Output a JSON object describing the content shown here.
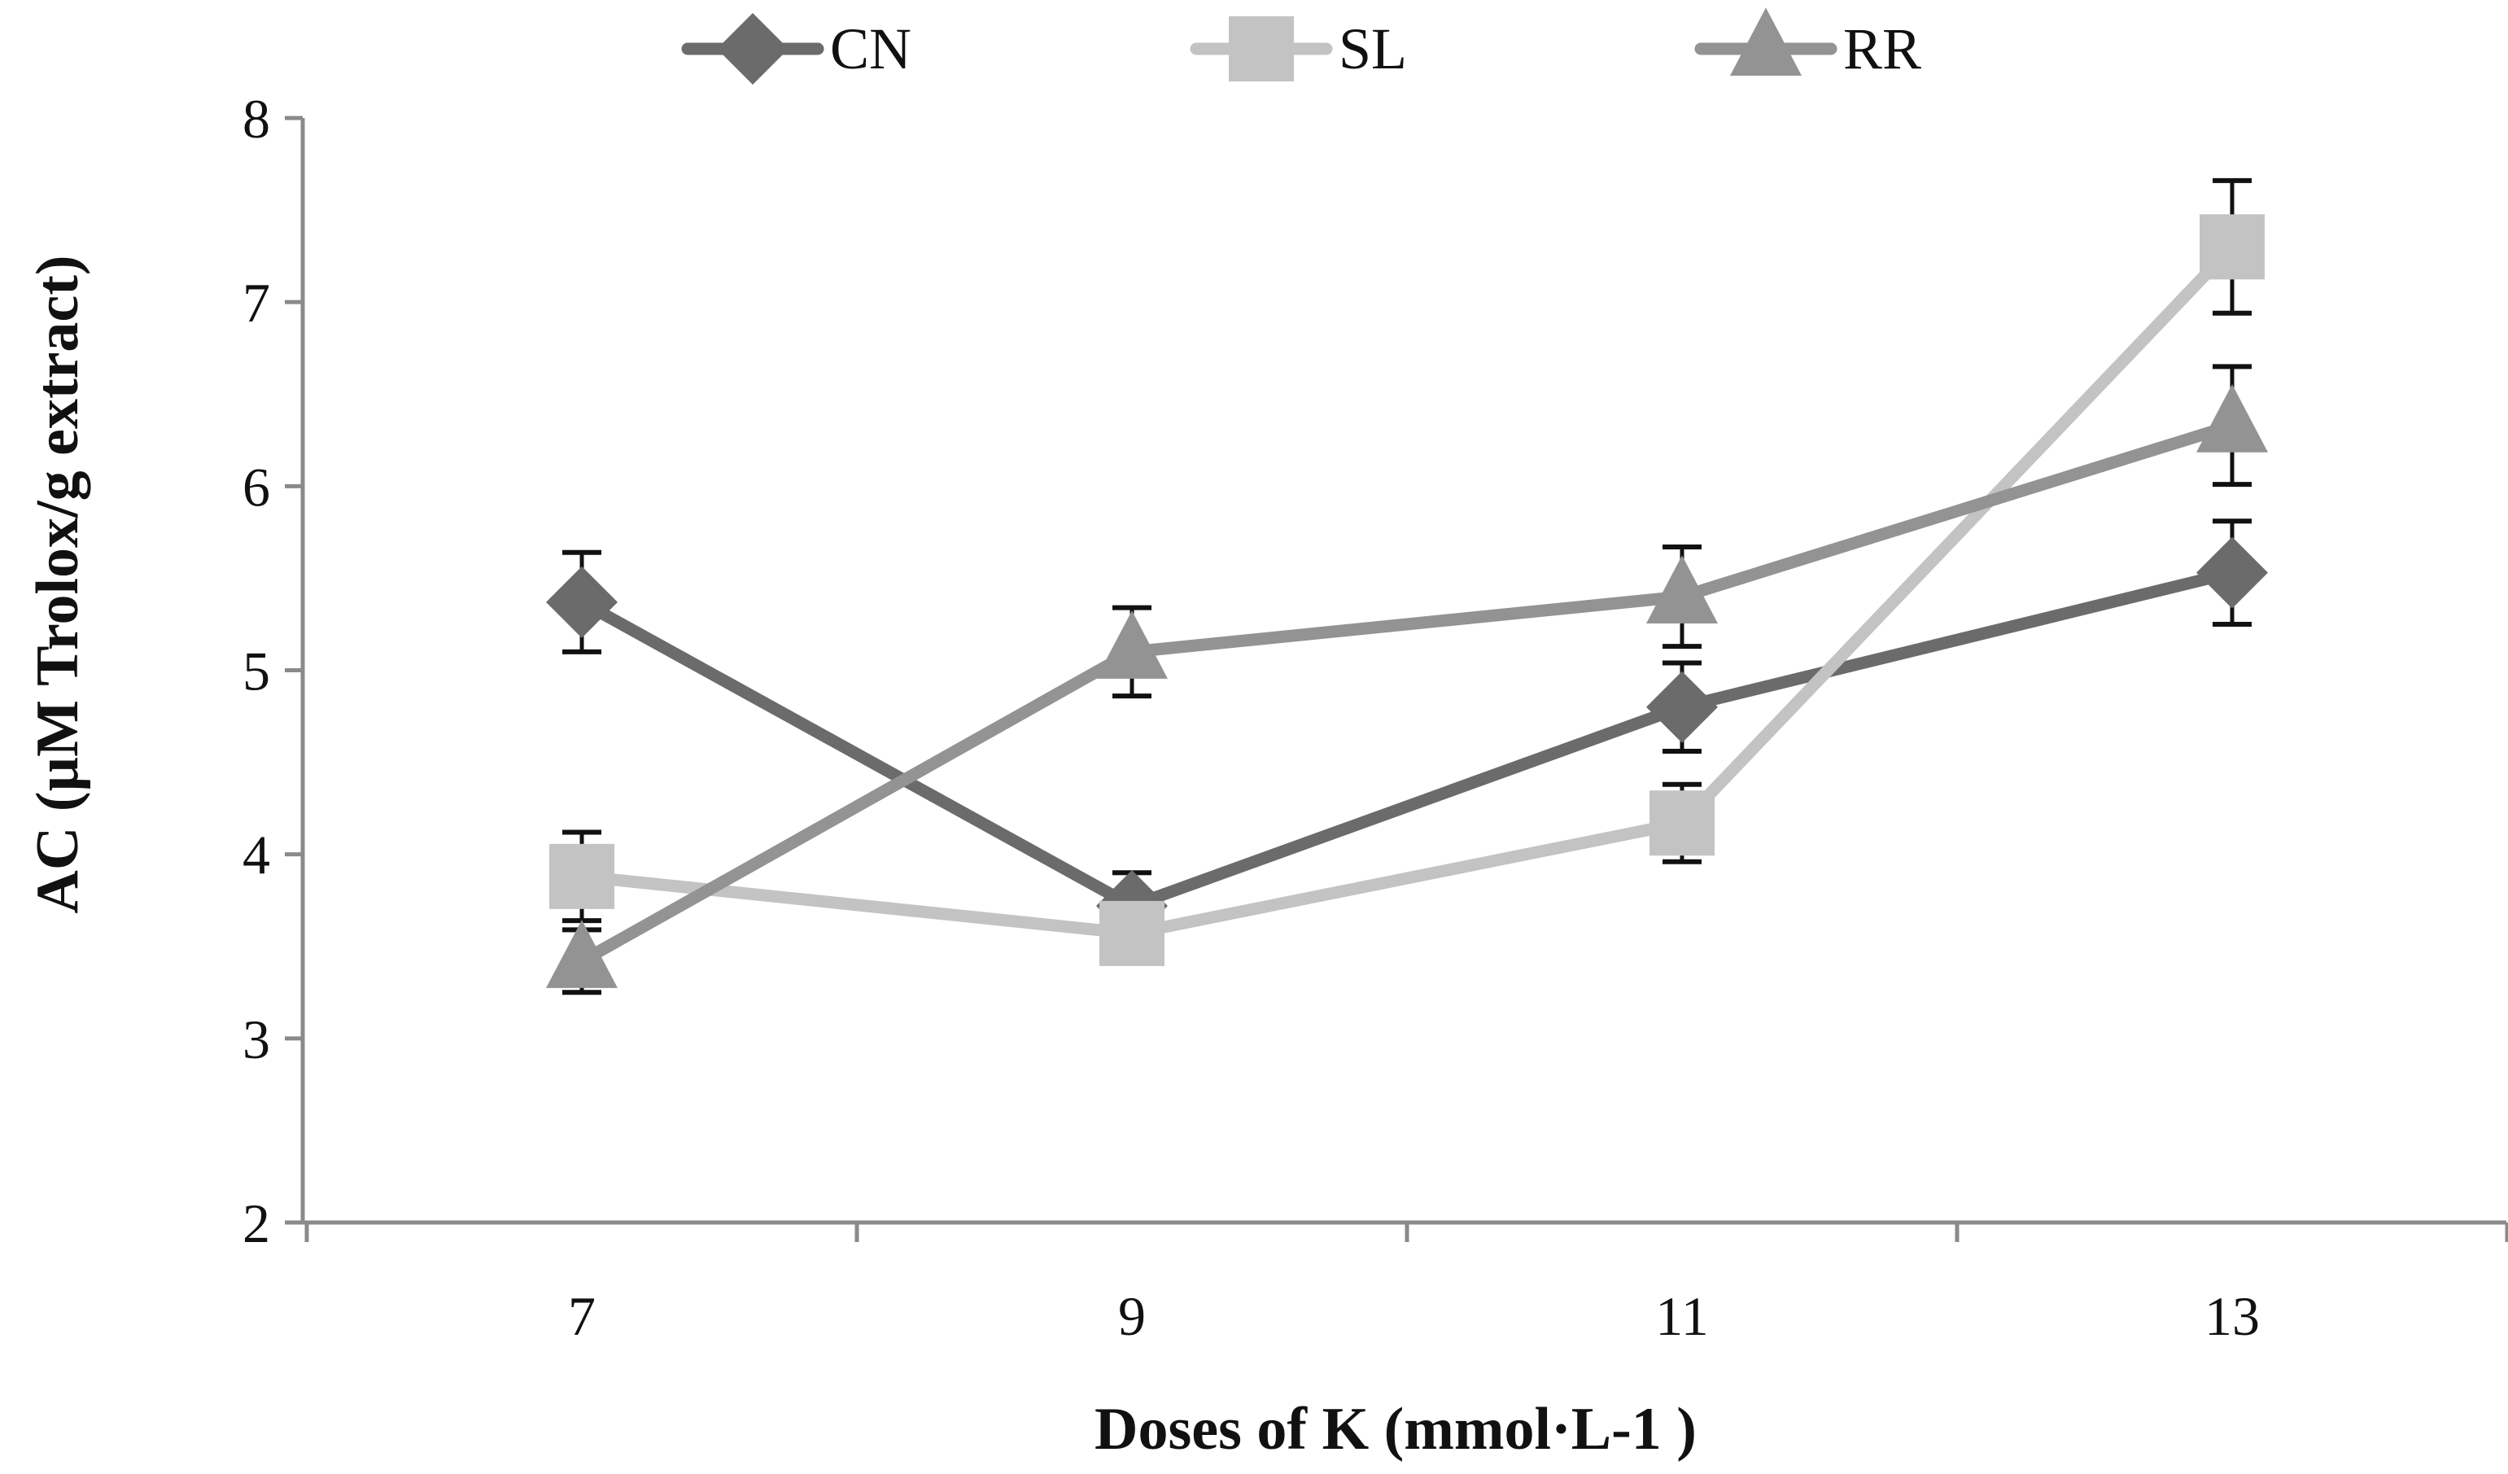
{
  "chart_data": {
    "type": "line",
    "title": "",
    "xlabel": "Doses of K (mmol·L-1 )",
    "ylabel": "AC  (µM Trolox/g extract)",
    "x": [
      7,
      9,
      11,
      13
    ],
    "x_tick_labels": [
      "7",
      "9",
      "11",
      "13"
    ],
    "ylim": [
      2,
      8
    ],
    "y_ticks": [
      2,
      3,
      4,
      5,
      6,
      7,
      8
    ],
    "y_tick_labels": [
      "2",
      "3",
      "4",
      "5",
      "6",
      "7",
      "8"
    ],
    "grid": false,
    "legend_position": "top-center",
    "series": [
      {
        "name": "CN",
        "marker": "diamond",
        "color": "#6b6b6b",
        "values": [
          5.37,
          3.72,
          4.8,
          5.53
        ],
        "errors": [
          0.27,
          0.18,
          0.24,
          0.28
        ]
      },
      {
        "name": "SL",
        "marker": "square",
        "color": "#c3c3c3",
        "values": [
          3.88,
          3.57,
          4.17,
          7.3
        ],
        "errors": [
          0.24,
          0.1,
          0.21,
          0.36
        ]
      },
      {
        "name": "RR",
        "marker": "triangle",
        "color": "#939393",
        "values": [
          3.42,
          5.1,
          5.4,
          6.33
        ],
        "errors": [
          0.17,
          0.24,
          0.27,
          0.32
        ]
      }
    ]
  }
}
